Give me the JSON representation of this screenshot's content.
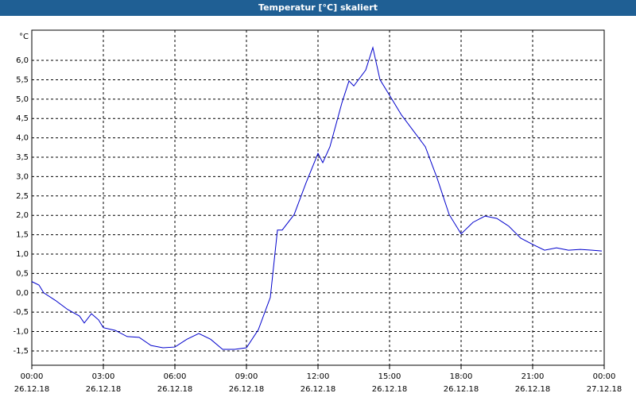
{
  "chart_data": {
    "type": "line",
    "title": "Temperatur [°C] skaliert",
    "y_unit": "°C",
    "grid": true,
    "xlim": [
      0,
      24
    ],
    "ylim": [
      -1.87,
      6.78
    ],
    "xticks": [
      {
        "value": 0,
        "label": "00:00"
      },
      {
        "value": 3,
        "label": "03:00"
      },
      {
        "value": 6,
        "label": "06:00"
      },
      {
        "value": 9,
        "label": "09:00"
      },
      {
        "value": 12,
        "label": "12:00"
      },
      {
        "value": 15,
        "label": "15:00"
      },
      {
        "value": 18,
        "label": "18:00"
      },
      {
        "value": 21,
        "label": "21:00"
      },
      {
        "value": 24,
        "label": "00:00"
      }
    ],
    "xtick_dates": [
      "26.12.18",
      "26.12.18",
      "26.12.18",
      "26.12.18",
      "26.12.18",
      "26.12.18",
      "26.12.18",
      "26.12.18",
      "27.12.18"
    ],
    "yticks": [
      {
        "value": -1.5,
        "label": "-1,5"
      },
      {
        "value": -1,
        "label": "-1,0"
      },
      {
        "value": -0.5,
        "label": "-0,5"
      },
      {
        "value": 0,
        "label": "0,0"
      },
      {
        "value": 0.5,
        "label": "0,5"
      },
      {
        "value": 1,
        "label": "1,0"
      },
      {
        "value": 1.5,
        "label": "1,5"
      },
      {
        "value": 2,
        "label": "2,0"
      },
      {
        "value": 2.5,
        "label": "2,5"
      },
      {
        "value": 3,
        "label": "3,0"
      },
      {
        "value": 3.5,
        "label": "3,5"
      },
      {
        "value": 4,
        "label": "4,0"
      },
      {
        "value": 4.5,
        "label": "4,5"
      },
      {
        "value": 5,
        "label": "5,0"
      },
      {
        "value": 5.5,
        "label": "5,5"
      },
      {
        "value": 6,
        "label": "6,0"
      }
    ],
    "series": [
      {
        "color": "#0000cc",
        "x": [
          0,
          0.3,
          0.5,
          1,
          1.5,
          2,
          2.2,
          2.5,
          2.8,
          3,
          3.5,
          4,
          4.5,
          5,
          5.5,
          6,
          6.5,
          7,
          7.5,
          8,
          8.5,
          9,
          9.5,
          10,
          10.3,
          10.5,
          11,
          11.5,
          12,
          12.2,
          12.5,
          13,
          13.3,
          13.5,
          14,
          14.3,
          14.6,
          15,
          15.5,
          16,
          16.5,
          17,
          17.5,
          18,
          18.5,
          19,
          19.5,
          20,
          20.5,
          21,
          21.5,
          22,
          22.5,
          23,
          23.5,
          23.9
        ],
        "values": [
          0.29,
          0.2,
          0.0,
          -0.2,
          -0.43,
          -0.6,
          -0.78,
          -0.54,
          -0.7,
          -0.9,
          -0.97,
          -1.13,
          -1.15,
          -1.36,
          -1.42,
          -1.4,
          -1.2,
          -1.05,
          -1.2,
          -1.46,
          -1.46,
          -1.42,
          -0.95,
          -0.12,
          1.62,
          1.62,
          2.02,
          2.84,
          3.6,
          3.36,
          3.77,
          4.9,
          5.47,
          5.34,
          5.75,
          6.33,
          5.5,
          5.1,
          4.59,
          4.18,
          3.77,
          2.95,
          2.02,
          1.52,
          1.82,
          1.98,
          1.92,
          1.72,
          1.41,
          1.25,
          1.1,
          1.16,
          1.1,
          1.12,
          1.1,
          1.08
        ]
      }
    ]
  }
}
